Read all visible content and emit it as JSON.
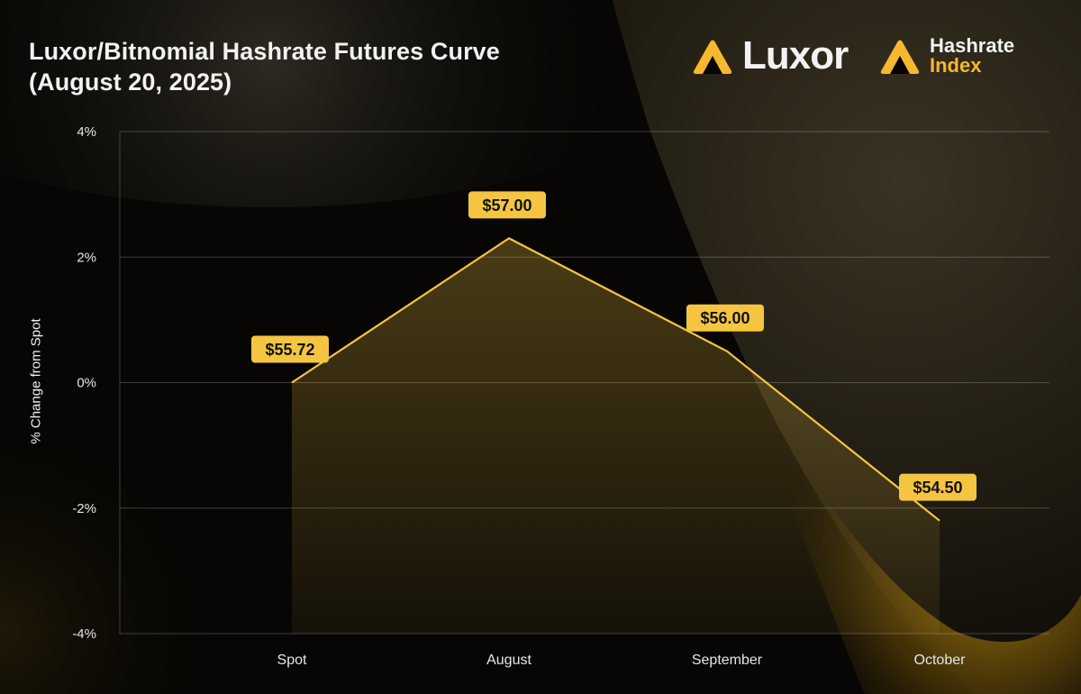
{
  "title_lines": [
    "Luxor/Bitnomial Hashrate Futures Curve",
    "(August 20, 2025)"
  ],
  "logos": {
    "luxor": {
      "icon": "luxor-triangle-icon",
      "text": "Luxor"
    },
    "hashrate_index": {
      "icon": "hashrate-index-triangle-icon",
      "line1": "Hashrate",
      "line2": "Index"
    }
  },
  "colors": {
    "accent": "#f5c542",
    "line": "#f5c542",
    "label_bg": "#f5c542",
    "label_text": "#111111",
    "text": "#f2f2f2",
    "background": "#070604"
  },
  "chart_data": {
    "type": "area",
    "categories": [
      "Spot",
      "August",
      "September",
      "October"
    ],
    "values": [
      0,
      2.3,
      0.5,
      -2.2
    ],
    "data_labels": [
      "$55.72",
      "$57.00",
      "$56.00",
      "$54.50"
    ],
    "ylabel": "% Change from Spot",
    "xlabel": "",
    "ylim": [
      -4,
      4
    ],
    "yticks": [
      4,
      2,
      0,
      -2,
      -4
    ],
    "ytick_labels": [
      "4%",
      "2%",
      "0%",
      "-2%",
      "-4%"
    ],
    "grid": true
  }
}
